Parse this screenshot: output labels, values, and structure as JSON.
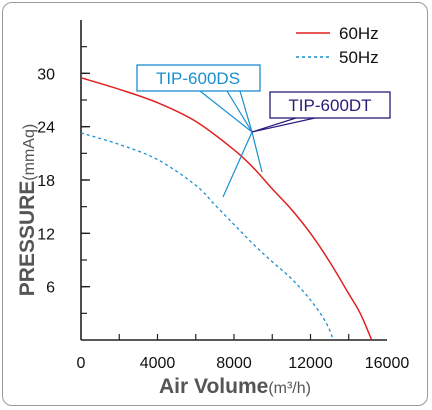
{
  "chart_data": {
    "type": "line",
    "title": "",
    "xlabel": "Air Volume",
    "xunit": "(m³/h)",
    "ylabel": "PRESSURE",
    "yunit": "(mmAq)",
    "xlim": [
      0,
      16000
    ],
    "ylim": [
      0,
      36
    ],
    "xticks": [
      "0",
      "4000",
      "8000",
      "12000",
      "16000"
    ],
    "yticks": [
      "6",
      "12",
      "18",
      "24",
      "30"
    ],
    "legend_position": "top-right",
    "series": [
      {
        "name": "60Hz",
        "color": "#e02020",
        "dash": "solid",
        "x": [
          0,
          2000,
          4000,
          6000,
          8000,
          9000,
          10000,
          11000,
          12000,
          13000,
          14000,
          14600,
          15200
        ],
        "y": [
          29.5,
          28.2,
          26.7,
          24.6,
          21.4,
          19.4,
          17.0,
          14.7,
          12.0,
          8.8,
          5.2,
          3.0,
          0
        ]
      },
      {
        "name": "50Hz",
        "color": "#1a8fd0",
        "dash": "dashed",
        "x": [
          0,
          2000,
          4000,
          6000,
          7000,
          8000,
          9000,
          10000,
          11000,
          12000,
          12800,
          13200
        ],
        "y": [
          23.3,
          22.0,
          20.3,
          17.4,
          15.2,
          13.0,
          10.8,
          8.8,
          6.9,
          4.5,
          2.0,
          0
        ]
      }
    ],
    "annotations": [
      {
        "label": "TIP-600DS",
        "color": "#1a8fd0"
      },
      {
        "label": "TIP-600DT",
        "color": "#2a1a7a"
      }
    ]
  }
}
